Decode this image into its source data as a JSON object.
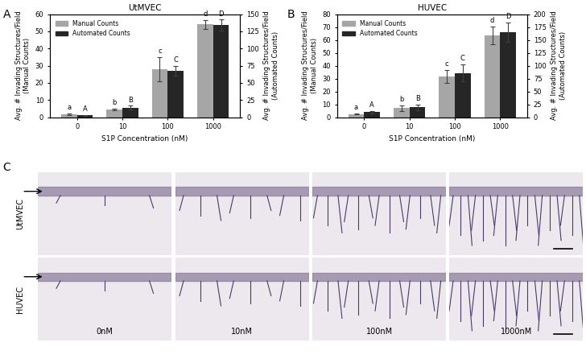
{
  "chart_data": [
    {
      "type": "bar",
      "title": "UtMVEC",
      "panel": "A",
      "categories": [
        "0",
        "10",
        "100",
        "1000"
      ],
      "x_label": "S1P Concentration (nM)",
      "y_label": "Avg. # Invading Structures/Field\n(Manual Counts)",
      "y2_label": "Avg. # Invading Structures/Field\n(Automated Counts)",
      "ylim": [
        0,
        60
      ],
      "yticks": [
        0,
        10,
        20,
        30,
        40,
        50,
        60
      ],
      "y2lim": [
        0,
        150
      ],
      "y2ticks": [
        0,
        25,
        50,
        75,
        100,
        125,
        150
      ],
      "legend": "upper left",
      "series": [
        {
          "name": "Manual Counts",
          "color": "#a6a6a6",
          "values": [
            1.5,
            4.5,
            28,
            54
          ],
          "errors": [
            0.5,
            0.5,
            7,
            2.5
          ],
          "significance_letters": [
            "a",
            "b",
            "c",
            "d"
          ]
        },
        {
          "name": "Automated Counts",
          "color": "#262626",
          "axis": "y2",
          "values": [
            2.5,
            14,
            68,
            134
          ],
          "errors": [
            1,
            2.5,
            7,
            8
          ],
          "significance_letters": [
            "A",
            "B",
            "C",
            "D"
          ]
        }
      ]
    },
    {
      "type": "bar",
      "title": "HUVEC",
      "panel": "B",
      "categories": [
        "0",
        "10",
        "100",
        "1000"
      ],
      "x_label": "S1P Concentration (nM)",
      "y_label": "Avg. # Invading Structures/Field\n(Manual Counts)",
      "y2_label": "Avg. # Invading Structures/Field\n(Automated Counts)",
      "ylim": [
        0,
        80
      ],
      "yticks": [
        0,
        10,
        20,
        30,
        40,
        50,
        60,
        70,
        80
      ],
      "y2lim": [
        0,
        200
      ],
      "y2ticks": [
        0,
        25,
        50,
        75,
        100,
        125,
        150,
        175,
        200
      ],
      "legend": "upper left",
      "series": [
        {
          "name": "Manual Counts",
          "color": "#a6a6a6",
          "values": [
            2.5,
            7,
            31.5,
            63.5
          ],
          "errors": [
            0.5,
            2,
            5,
            7
          ],
          "significance_letters": [
            "a",
            "b",
            "c",
            "d"
          ]
        },
        {
          "name": "Automated Counts",
          "color": "#262626",
          "axis": "y2",
          "values": [
            10,
            19,
            86,
            165
          ],
          "errors": [
            2.5,
            5,
            17,
            19
          ],
          "significance_letters": [
            "A",
            "B",
            "C",
            "D"
          ]
        }
      ]
    }
  ],
  "micrographs": {
    "panel": "C",
    "rows": [
      "UtMVEC",
      "HUVEC"
    ],
    "columns": [
      "0nM",
      "10nM",
      "100nM",
      "1000nM"
    ]
  }
}
